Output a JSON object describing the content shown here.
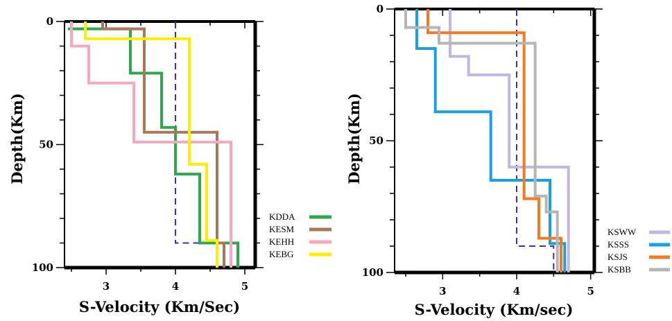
{
  "chart_data": [
    {
      "type": "line",
      "xlabel": "S-Velocity (Km/Sec)",
      "ylabel": "Depth(Km)",
      "xlim": [
        2.4,
        5.15
      ],
      "ylim": [
        0,
        100
      ],
      "y_inverted": true,
      "x_ticks": [
        "3",
        "4",
        "5"
      ],
      "y_ticks": [
        "0",
        "50",
        "100"
      ],
      "legend_position": "right",
      "reference_line": {
        "style": "dashed",
        "color": "#3333aa",
        "points": [
          [
            4.0,
            0
          ],
          [
            4.0,
            90
          ],
          [
            4.6,
            90
          ],
          [
            4.6,
            100
          ]
        ]
      },
      "series": [
        {
          "name": "KDDA",
          "color": "#2ea84a",
          "points": [
            [
              2.45,
              3
            ],
            [
              3.35,
              3
            ],
            [
              3.35,
              21
            ],
            [
              3.8,
              21
            ],
            [
              3.8,
              43
            ],
            [
              4.0,
              43
            ],
            [
              4.0,
              62
            ],
            [
              4.35,
              62
            ],
            [
              4.35,
              90
            ],
            [
              4.9,
              90
            ],
            [
              4.9,
              100
            ]
          ]
        },
        {
          "name": "KESM",
          "color": "#a8785a",
          "points": [
            [
              2.95,
              0
            ],
            [
              2.95,
              3
            ],
            [
              3.55,
              3
            ],
            [
              3.55,
              45
            ],
            [
              4.6,
              45
            ],
            [
              4.6,
              90
            ],
            [
              4.7,
              90
            ],
            [
              4.7,
              100
            ]
          ]
        },
        {
          "name": "KEHH",
          "color": "#f7a8bc",
          "points": [
            [
              2.5,
              0
            ],
            [
              2.5,
              10
            ],
            [
              2.75,
              10
            ],
            [
              2.75,
              25
            ],
            [
              3.4,
              25
            ],
            [
              3.4,
              49
            ],
            [
              4.8,
              49
            ],
            [
              4.8,
              100
            ]
          ]
        },
        {
          "name": "KEBG",
          "color": "#ffee00",
          "points": [
            [
              2.7,
              0
            ],
            [
              2.7,
              7
            ],
            [
              4.2,
              7
            ],
            [
              4.2,
              58
            ],
            [
              4.45,
              58
            ],
            [
              4.45,
              89
            ],
            [
              4.6,
              89
            ],
            [
              4.6,
              100
            ]
          ]
        }
      ]
    },
    {
      "type": "line",
      "xlabel": "S-Velocity (Km/sec)",
      "ylabel": "Depth(Km)",
      "xlim": [
        2.35,
        5.05
      ],
      "ylim": [
        0,
        100
      ],
      "y_inverted": true,
      "x_ticks": [
        "3",
        "4",
        "5"
      ],
      "y_ticks": [
        "0",
        "50",
        "100"
      ],
      "legend_position": "right",
      "reference_line": {
        "style": "dashed",
        "color": "#3333aa",
        "points": [
          [
            4.0,
            0
          ],
          [
            4.0,
            90
          ],
          [
            4.5,
            90
          ],
          [
            4.5,
            100
          ]
        ]
      },
      "series": [
        {
          "name": "KSWW",
          "color": "#c2b6e2",
          "points": [
            [
              3.1,
              0
            ],
            [
              3.1,
              18
            ],
            [
              3.35,
              18
            ],
            [
              3.35,
              25
            ],
            [
              3.9,
              25
            ],
            [
              3.9,
              60
            ],
            [
              4.7,
              60
            ],
            [
              4.7,
              100
            ]
          ]
        },
        {
          "name": "KSSS",
          "color": "#1aa0e0",
          "points": [
            [
              2.65,
              0
            ],
            [
              2.65,
              15
            ],
            [
              2.9,
              15
            ],
            [
              2.9,
              39
            ],
            [
              3.65,
              39
            ],
            [
              3.65,
              65
            ],
            [
              4.45,
              65
            ],
            [
              4.45,
              89
            ],
            [
              4.65,
              89
            ],
            [
              4.65,
              100
            ]
          ]
        },
        {
          "name": "KSJS",
          "color": "#f47a20",
          "points": [
            [
              2.8,
              0
            ],
            [
              2.8,
              9
            ],
            [
              4.1,
              9
            ],
            [
              4.1,
              72
            ],
            [
              4.3,
              72
            ],
            [
              4.3,
              87
            ],
            [
              4.6,
              87
            ],
            [
              4.6,
              100
            ]
          ]
        },
        {
          "name": "KSBB",
          "color": "#b5b5b5",
          "points": [
            [
              2.5,
              0
            ],
            [
              2.5,
              7
            ],
            [
              2.95,
              7
            ],
            [
              2.95,
              13
            ],
            [
              4.25,
              13
            ],
            [
              4.25,
              71
            ],
            [
              4.4,
              71
            ],
            [
              4.4,
              77
            ],
            [
              4.55,
              77
            ],
            [
              4.55,
              100
            ]
          ]
        }
      ]
    }
  ]
}
